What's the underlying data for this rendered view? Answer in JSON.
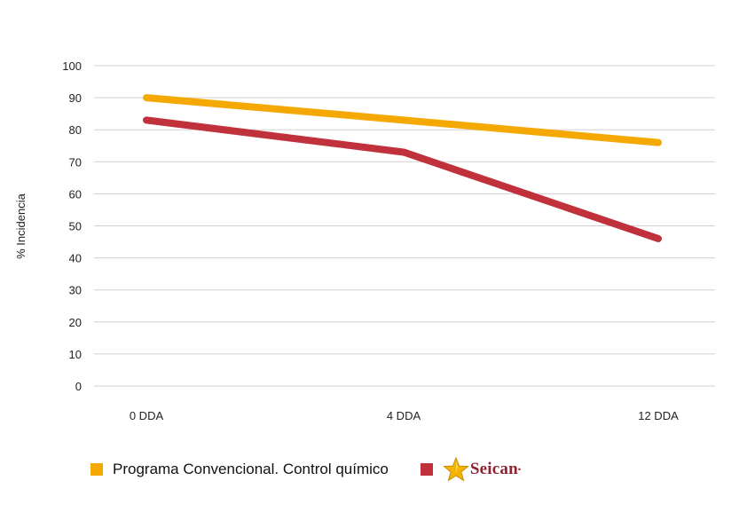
{
  "chart_data": {
    "type": "line",
    "categories": [
      "0 DDA",
      "4 DDA",
      "12 DDA"
    ],
    "series": [
      {
        "name": "Programa Convencional. Control químico",
        "values": [
          90,
          83,
          76
        ],
        "color": "#f5a800"
      },
      {
        "name": "Seican",
        "values": [
          83,
          73,
          46
        ],
        "color": "#c0313b"
      }
    ],
    "title": "",
    "xlabel": "",
    "ylabel": "% Incidencia",
    "ylim": [
      0,
      100
    ],
    "yticks": [
      0,
      10,
      20,
      30,
      40,
      50,
      60,
      70,
      80,
      90,
      100
    ],
    "grid": true,
    "legend_position": "bottom-left"
  },
  "legend": {
    "item1_label": "Programa Convencional. Control químico",
    "item2_brand": "Seican",
    "item2_brand_icon": "star-icon"
  }
}
